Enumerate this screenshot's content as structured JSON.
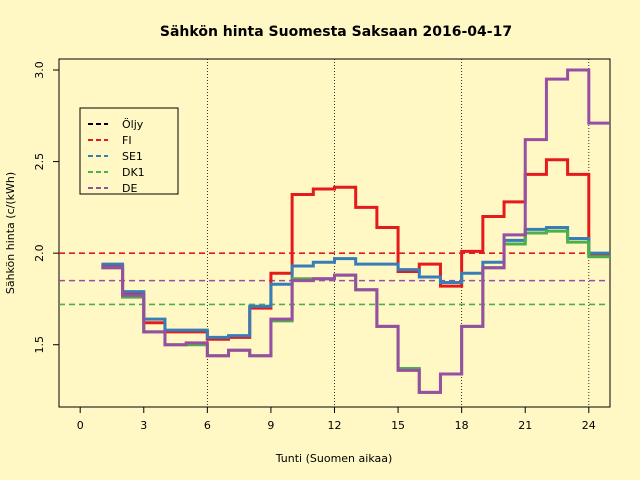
{
  "chart_data": {
    "type": "line",
    "title": "Sähkön hinta Suomesta Saksaan 2016-04-17",
    "xlabel": "Tunti (Suomen aikaa)",
    "ylabel": "Sähkön hinta (c/(kWh)",
    "xlim": [
      -1,
      25
    ],
    "ylim": [
      1.16,
      3.06
    ],
    "xticks": [
      0,
      3,
      6,
      9,
      12,
      15,
      18,
      21,
      24
    ],
    "yticks": [
      1.5,
      2.0,
      2.5,
      3.0
    ],
    "ytick_labels": [
      "1.5",
      "2.0",
      "2.5",
      "3.0"
    ],
    "vlines": [
      6,
      12,
      18,
      24
    ],
    "legend_position": "top-left",
    "legend": [
      "Öljy",
      "FI",
      "SE1",
      "DK1",
      "DE"
    ],
    "series": [
      {
        "name": "FI",
        "color": "#e41a1c",
        "style": "step",
        "x": [
          1,
          2,
          3,
          4,
          5,
          6,
          7,
          8,
          9,
          10,
          11,
          12,
          13,
          14,
          15,
          16,
          17,
          18,
          19,
          20,
          21,
          22,
          23,
          24,
          25
        ],
        "values": [
          1.93,
          1.78,
          1.62,
          1.57,
          1.57,
          1.53,
          1.54,
          1.7,
          1.89,
          2.32,
          2.35,
          2.36,
          2.25,
          2.14,
          1.9,
          1.94,
          1.82,
          2.01,
          2.2,
          2.28,
          2.43,
          2.51,
          2.43,
          1.99,
          1.99
        ]
      },
      {
        "name": "SE1",
        "color": "#377eb8",
        "style": "step",
        "x": [
          1,
          2,
          3,
          4,
          5,
          6,
          7,
          8,
          9,
          10,
          11,
          12,
          13,
          14,
          15,
          16,
          17,
          18,
          19,
          20,
          21,
          22,
          23,
          24,
          25
        ],
        "values": [
          1.94,
          1.79,
          1.64,
          1.58,
          1.58,
          1.54,
          1.55,
          1.71,
          1.83,
          1.93,
          1.95,
          1.97,
          1.94,
          1.94,
          1.91,
          1.87,
          1.84,
          1.89,
          1.95,
          2.07,
          2.13,
          2.14,
          2.08,
          2.0,
          2.0
        ]
      },
      {
        "name": "DK1",
        "color": "#4daf4a",
        "style": "step",
        "x": [
          1,
          2,
          3,
          4,
          5,
          6,
          7,
          8,
          9,
          10,
          11,
          12,
          13,
          14,
          15,
          16,
          17,
          18,
          19,
          20,
          21,
          22,
          23,
          24,
          25
        ],
        "values": [
          1.92,
          1.76,
          1.57,
          1.5,
          1.5,
          1.44,
          1.47,
          1.44,
          1.63,
          1.86,
          1.86,
          1.88,
          1.8,
          1.6,
          1.37,
          1.24,
          1.34,
          1.6,
          1.92,
          2.05,
          2.11,
          2.12,
          2.06,
          1.98,
          1.98
        ]
      },
      {
        "name": "DE",
        "color": "#984ea3",
        "style": "step",
        "x": [
          1,
          2,
          3,
          4,
          5,
          6,
          7,
          8,
          9,
          10,
          11,
          12,
          13,
          14,
          15,
          16,
          17,
          18,
          19,
          20,
          21,
          22,
          23,
          24,
          25
        ],
        "values": [
          1.92,
          1.77,
          1.57,
          1.5,
          1.51,
          1.44,
          1.47,
          1.44,
          1.64,
          1.85,
          1.86,
          1.88,
          1.8,
          1.6,
          1.36,
          1.24,
          1.34,
          1.6,
          1.92,
          2.1,
          2.62,
          2.95,
          3.0,
          2.71,
          2.71
        ]
      }
    ],
    "reference_lines": [
      {
        "name": "FI",
        "color": "#e41a1c",
        "value": 2.0
      },
      {
        "name": "DE",
        "color": "#984ea3",
        "value": 1.85
      },
      {
        "name": "DK1",
        "color": "#4daf4a",
        "value": 1.72
      }
    ],
    "legend_colors": [
      "#000000",
      "#e41a1c",
      "#377eb8",
      "#4daf4a",
      "#984ea3"
    ]
  }
}
